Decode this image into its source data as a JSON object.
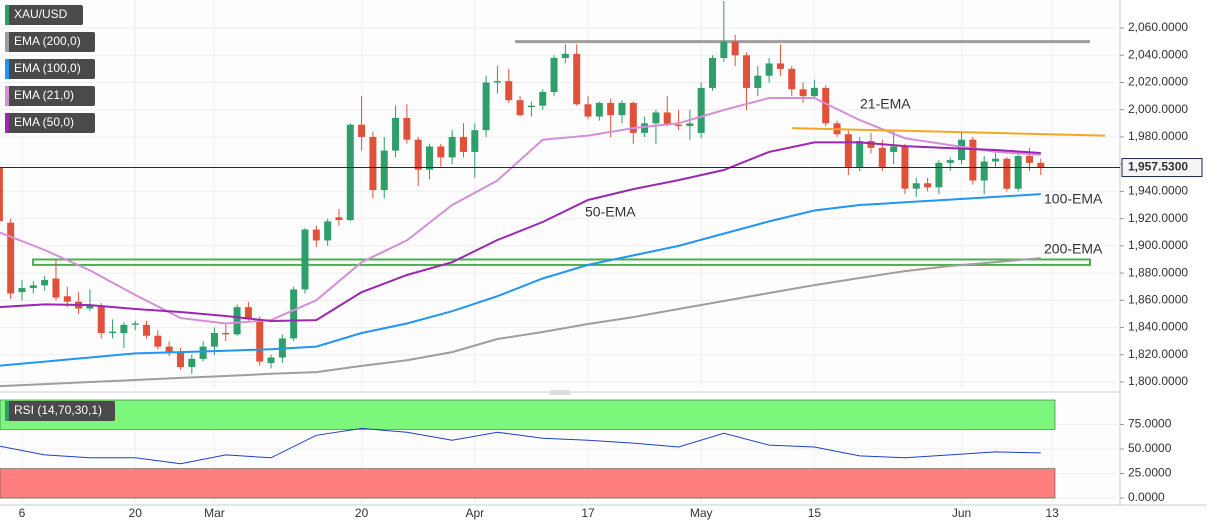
{
  "chart_data": {
    "type": "candlestick",
    "title": "XAU/USD",
    "categories": [
      null,
      null,
      "6",
      null,
      null,
      null,
      null,
      null,
      null,
      null,
      null,
      null,
      "20",
      null,
      null,
      null,
      null,
      null,
      null,
      "Mar",
      null,
      null,
      null,
      null,
      null,
      null,
      null,
      null,
      null,
      null,
      null,
      null,
      "20",
      null,
      null,
      null,
      null,
      null,
      null,
      null,
      null,
      null,
      "Apr",
      null,
      null,
      null,
      null,
      null,
      null,
      null,
      null,
      null,
      "17",
      null,
      null,
      null,
      null,
      null,
      null,
      null,
      null,
      null,
      "May",
      null,
      null,
      null,
      null,
      null,
      null,
      null,
      null,
      null,
      "15",
      null,
      null,
      null,
      null,
      null,
      null,
      null,
      null,
      null,
      null,
      null,
      null,
      "Jun",
      null,
      null,
      null,
      null,
      null,
      null,
      null,
      "13"
    ],
    "open": [
      1958,
      1917,
      1866,
      1869,
      1871,
      1876,
      1863,
      1859,
      1854,
      1856,
      1836,
      1836,
      1842,
      1842,
      1834,
      1826,
      1822,
      1811,
      1817,
      1826,
      1836,
      1835,
      1855,
      1846,
      1814,
      1818,
      1832,
      1868,
      1912,
      1904,
      1921,
      1919,
      1989,
      1980,
      1941,
      1970,
      1994,
      1978,
      1956,
      1973,
      1965,
      1980,
      1969,
      1985,
      2020,
      2021,
      2007,
      2002,
      2003,
      2013,
      2038,
      2041,
      2004,
      1995,
      2005,
      1996,
      2005,
      1983,
      1990,
      1998,
      1989,
      1988,
      1983,
      2016,
      2038,
      2050,
      2040,
      2016,
      2025,
      2034,
      2030,
      2015,
      2010,
      2016,
      1990,
      1982,
      1958,
      1977,
      1972,
      1969,
      1973,
      1942,
      1946,
      1943,
      1961,
      1963,
      1978,
      1948,
      1962,
      1964,
      1942,
      1966,
      1961,
      null
    ],
    "high": [
      1960,
      1920,
      1875,
      1874,
      1878,
      1890,
      1870,
      1866,
      1868,
      1858,
      1846,
      1844,
      1845,
      1845,
      1838,
      1830,
      1825,
      1820,
      1830,
      1840,
      1842,
      1857,
      1859,
      1848,
      1820,
      1835,
      1870,
      1913,
      1915,
      1920,
      1927,
      1990,
      2010,
      1984,
      1980,
      2003,
      2004,
      1980,
      1975,
      1975,
      1985,
      1990,
      1990,
      2025,
      2032,
      2030,
      2010,
      2006,
      2015,
      2040,
      2048,
      2048,
      2010,
      2006,
      2008,
      2007,
      2006,
      1995,
      2000,
      2010,
      2000,
      2000,
      2020,
      2040,
      2080,
      2055,
      2042,
      2032,
      2038,
      2048,
      2032,
      2020,
      2022,
      2018,
      1992,
      1985,
      1980,
      1983,
      1978,
      1985,
      1975,
      1950,
      1950,
      1963,
      1965,
      1983,
      1980,
      1966,
      1968,
      1965,
      1970,
      1972,
      1964,
      null
    ],
    "low": [
      1915,
      1861,
      1860,
      1865,
      1867,
      1860,
      1855,
      1850,
      1852,
      1832,
      1832,
      1825,
      1838,
      1832,
      1824,
      1819,
      1809,
      1806,
      1815,
      1820,
      1830,
      1834,
      1845,
      1812,
      1810,
      1814,
      1830,
      1865,
      1899,
      1900,
      1915,
      1918,
      1970,
      1935,
      1935,
      1965,
      1975,
      1944,
      1949,
      1958,
      1960,
      1965,
      1950,
      1980,
      2012,
      2005,
      1995,
      1995,
      2000,
      2010,
      2034,
      2003,
      1993,
      1992,
      1980,
      1990,
      1975,
      1980,
      1975,
      1988,
      1985,
      1978,
      1979,
      2014,
      2035,
      2032,
      2000,
      2010,
      2020,
      2025,
      2010,
      2005,
      2008,
      1988,
      1980,
      1952,
      1955,
      1968,
      1955,
      1960,
      1938,
      1936,
      1940,
      1938,
      1955,
      1960,
      1945,
      1938,
      1958,
      1940,
      1940,
      1955,
      1952,
      null
    ],
    "close": [
      1918,
      1865,
      1869,
      1871,
      1875,
      1862,
      1859,
      1854,
      1857,
      1836,
      1837,
      1842,
      1843,
      1834,
      1826,
      1822,
      1811,
      1817,
      1826,
      1836,
      1835,
      1855,
      1846,
      1815,
      1818,
      1832,
      1868,
      1912,
      1904,
      1918,
      1919,
      1989,
      1980,
      1941,
      1970,
      1994,
      1978,
      1956,
      1973,
      1965,
      1980,
      1969,
      1985,
      2020,
      2021,
      2007,
      1996,
      2003,
      2013,
      2038,
      2041,
      2004,
      1995,
      2005,
      1996,
      2005,
      1983,
      1990,
      1998,
      1989,
      1988,
      1990,
      2016,
      2038,
      2050,
      2040,
      2016,
      2025,
      2034,
      2030,
      2015,
      2010,
      2016,
      1990,
      1982,
      1958,
      1977,
      1972,
      1958,
      1973,
      1942,
      1946,
      1943,
      1961,
      1963,
      1978,
      1948,
      1962,
      1964,
      1942,
      1966,
      1961,
      1957.53,
      null
    ],
    "up_color": "#2e9e6a",
    "down_color": "#e0513a",
    "ylim": [
      1795.6,
      2080.6
    ],
    "yticks": [
      {
        "value": 1800,
        "label": "1,800.0000"
      },
      {
        "value": 1820,
        "label": "1,820.0000"
      },
      {
        "value": 1840,
        "label": "1,840.0000"
      },
      {
        "value": 1860,
        "label": "1,860.0000"
      },
      {
        "value": 1880,
        "label": "1,880.0000"
      },
      {
        "value": 1900,
        "label": "1,900.0000"
      },
      {
        "value": 1920,
        "label": "1,920.0000"
      },
      {
        "value": 1940,
        "label": "1,940.0000"
      },
      {
        "value": 1960,
        "label": "1,960.0000"
      },
      {
        "value": 1980,
        "label": "1,980.0000"
      },
      {
        "value": 2000,
        "label": "2,000.0000"
      },
      {
        "value": 2020,
        "label": "2,020.0000"
      },
      {
        "value": 2040,
        "label": "2,040.0000"
      },
      {
        "value": 2060,
        "label": "2,060.0000"
      }
    ],
    "grid": true,
    "last_price": {
      "value": 1957.53,
      "label": "1,957.5300"
    },
    "ema": [
      {
        "name": "EMA (200,0)",
        "label": "200-EMA",
        "color": "#9e9e9e",
        "x": [
          0,
          4,
          8,
          12,
          16,
          20,
          24,
          28,
          32,
          36,
          40,
          44,
          48,
          52,
          56,
          60,
          64,
          68,
          72,
          76,
          80,
          84,
          88,
          92
        ],
        "values": [
          1797,
          1798.5,
          1800,
          1801.5,
          1803,
          1804.4,
          1806,
          1807.3,
          1811.8,
          1816,
          1822,
          1831.6,
          1836.7,
          1842.6,
          1847.7,
          1853.6,
          1859.5,
          1865.4,
          1871.2,
          1876.4,
          1881.5,
          1885.2,
          1888.1,
          1891
        ]
      },
      {
        "name": "EMA (100,0)",
        "label": "100-EMA",
        "color": "#2196f3",
        "x": [
          0,
          4,
          8,
          12,
          16,
          20,
          24,
          28,
          32,
          36,
          40,
          44,
          48,
          52,
          56,
          60,
          64,
          68,
          72,
          76,
          80,
          84,
          88,
          92
        ],
        "values": [
          1812,
          1815,
          1818,
          1821,
          1822,
          1823,
          1824,
          1826,
          1836,
          1843,
          1852,
          1863,
          1876,
          1886,
          1893,
          1900,
          1909,
          1918,
          1926,
          1930,
          1932,
          1934,
          1936,
          1938
        ]
      },
      {
        "name": "EMA (21,0)",
        "label": "21-EMA",
        "color": "#d48fd6",
        "x": [
          0,
          4,
          8,
          12,
          16,
          20,
          24,
          28,
          32,
          36,
          40,
          44,
          48,
          52,
          56,
          60,
          64,
          68,
          72,
          76,
          80,
          84,
          88,
          92
        ],
        "values": [
          1910,
          1897,
          1882,
          1864,
          1847,
          1843,
          1845.5,
          1860,
          1888,
          1904,
          1930,
          1948,
          1978,
          1981,
          1986.5,
          1990,
          1999.8,
          2008.6,
          2008.6,
          1992.4,
          1979,
          1974,
          1969,
          1967
        ]
      },
      {
        "name": "EMA (50,0)",
        "label": "50-EMA",
        "color": "#9c27b0",
        "x": [
          0,
          4,
          8,
          12,
          16,
          20,
          24,
          28,
          32,
          36,
          40,
          44,
          48,
          52,
          56,
          60,
          64,
          68,
          72,
          76,
          80,
          84,
          88,
          92
        ],
        "values": [
          1855,
          1857,
          1856.5,
          1853.6,
          1851.4,
          1848.5,
          1844.8,
          1845.5,
          1866,
          1878.6,
          1888,
          1904.3,
          1917.5,
          1933.7,
          1941.7,
          1948.3,
          1955.7,
          1969,
          1976,
          1976,
          1973.3,
          1971.8,
          1970.4,
          1968.2
        ]
      }
    ],
    "resistance": {
      "value": 2050,
      "color": "#9e9e9e"
    },
    "trendline": {
      "values": [
        1986.5,
        1981
      ],
      "color": "#f5a623"
    },
    "zone": {
      "values": [
        1886,
        1890
      ],
      "color": "#4caf50"
    },
    "rsi": {
      "name": "RSI (14,70,30,1)",
      "color": "#1e40c8",
      "ylim": [
        -7.1,
        102
      ],
      "yticks": [
        {
          "value": 0,
          "label": "0.0000"
        },
        {
          "value": 25,
          "label": "25.0000"
        },
        {
          "value": 50,
          "label": "50.0000"
        },
        {
          "value": 75,
          "label": "75.0000"
        }
      ],
      "overbought": 70,
      "oversold": 30,
      "overbought_color": "#7cf77c",
      "oversold_color": "#ff7f7f",
      "x": [
        0,
        4,
        8,
        12,
        16,
        20,
        24,
        28,
        32,
        36,
        40,
        44,
        48,
        52,
        56,
        60,
        64,
        68,
        72,
        76,
        80,
        84,
        88,
        92
      ],
      "values": [
        53,
        44,
        41,
        41,
        35,
        44,
        41,
        64,
        71,
        67,
        59,
        67,
        61,
        59,
        56,
        52,
        66,
        54,
        52,
        43,
        41,
        44,
        47,
        46
      ]
    }
  }
}
